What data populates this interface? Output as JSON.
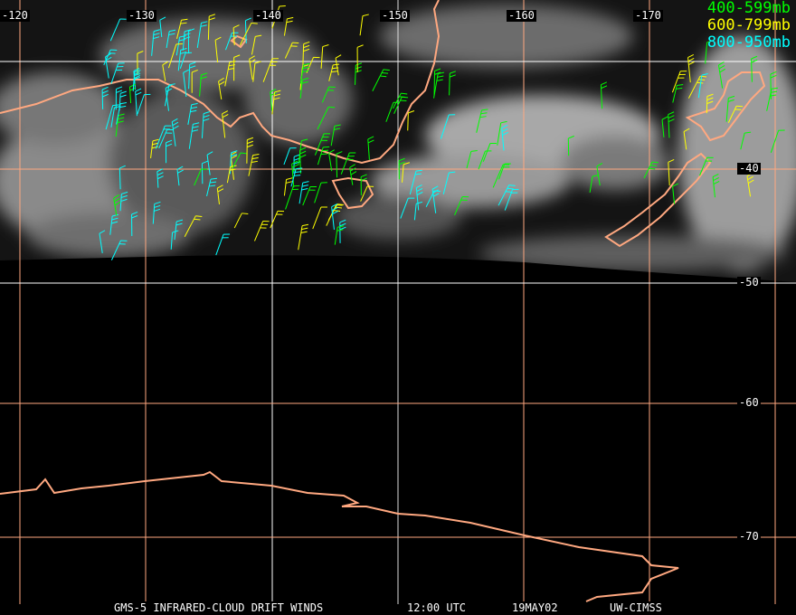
{
  "map": {
    "longitude_labels": [
      "-120",
      "-130",
      "-140",
      "-150",
      "-160",
      "-170"
    ],
    "latitude_labels": [
      "-40",
      "-50",
      "-60",
      "-70"
    ],
    "grid_color": "#ffa880",
    "coast_color": "#ffa880"
  },
  "legend": [
    {
      "label": "400-599mb",
      "color": "#00ff00"
    },
    {
      "label": "600-799mb",
      "color": "#ffff00"
    },
    {
      "label": "800-950mb",
      "color": "#00ffff"
    }
  ],
  "caption": {
    "product": "GMS-5 INFRARED-CLOUD DRIFT WINDS",
    "time": "12:00 UTC",
    "date": "19MAY02",
    "source": "UW-CIMSS"
  }
}
